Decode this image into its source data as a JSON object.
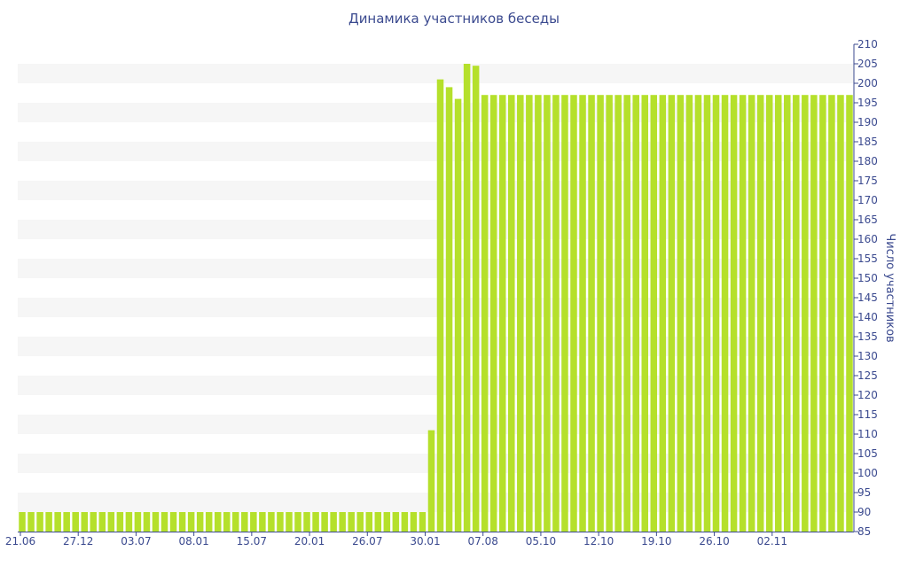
{
  "chart_data": {
    "type": "bar",
    "title": "Динамика участников беседы",
    "ylabel": "Число участников",
    "xlabel": "",
    "ylim": [
      85,
      210
    ],
    "y_ticks": [
      85,
      90,
      95,
      100,
      105,
      110,
      115,
      120,
      125,
      130,
      135,
      140,
      145,
      150,
      155,
      160,
      165,
      170,
      175,
      180,
      185,
      190,
      195,
      200,
      205,
      210
    ],
    "x_tick_labels": [
      "21.06",
      "27.12",
      "03.07",
      "08.01",
      "15.07",
      "20.01",
      "26.07",
      "30.01",
      "07.08",
      "05.10",
      "12.10",
      "19.10",
      "26.10",
      "02.11"
    ],
    "values": [
      90,
      90,
      90,
      90,
      90,
      90,
      90,
      90,
      90,
      90,
      90,
      90,
      90,
      90,
      90,
      90,
      90,
      90,
      90,
      90,
      90,
      90,
      90,
      90,
      90,
      90,
      90,
      90,
      90,
      90,
      90,
      90,
      90,
      90,
      90,
      90,
      90,
      90,
      90,
      90,
      90,
      90,
      90,
      90,
      90,
      90,
      111,
      201,
      199,
      196,
      205,
      204.5,
      197,
      197,
      197,
      197,
      197,
      197,
      197,
      197,
      197,
      197,
      197,
      197,
      197,
      197,
      197,
      197,
      197,
      197,
      197,
      197,
      197,
      197,
      197,
      197,
      197,
      197,
      197,
      197,
      197,
      197,
      197,
      197,
      197,
      197,
      197,
      197,
      197,
      197,
      197,
      197,
      197,
      197
    ],
    "grid": "horizontal bands",
    "bar_color": "#b5e02b",
    "band_color": "#f6f6f6",
    "text_color": "#3b4a8f"
  }
}
